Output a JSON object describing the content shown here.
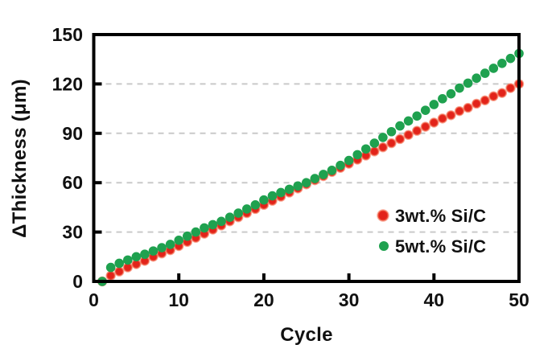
{
  "figure": {
    "background": "#ffffff",
    "frame_color": "#000000",
    "grid_color": "#c9c9c9",
    "tick_color": "#000000",
    "text_color": "#111111"
  },
  "chart_data": {
    "type": "scatter",
    "title": "",
    "xlabel": "Cycle",
    "ylabel": "ΔThickness (μm)",
    "xlim": [
      0,
      50
    ],
    "ylim": [
      0,
      150
    ],
    "x_ticks": [
      0,
      10,
      20,
      30,
      40,
      50
    ],
    "y_ticks": [
      0,
      30,
      60,
      90,
      120,
      150
    ],
    "x_tick_marks": [
      10,
      20,
      30,
      40
    ],
    "y_tick_marks": [
      30,
      60,
      90,
      120
    ],
    "grid_values": [
      30,
      60,
      90,
      120
    ],
    "grid": "horizontal-dashed",
    "legend_position": "inside-right",
    "x": [
      1,
      2,
      3,
      4,
      5,
      6,
      7,
      8,
      9,
      10,
      11,
      12,
      13,
      14,
      15,
      16,
      17,
      18,
      19,
      20,
      21,
      22,
      23,
      24,
      25,
      26,
      27,
      28,
      29,
      30,
      31,
      32,
      33,
      34,
      35,
      36,
      37,
      38,
      39,
      40,
      41,
      42,
      43,
      44,
      45,
      46,
      47,
      48,
      49,
      50
    ],
    "series": [
      {
        "name": "3wt.% Si/C",
        "color": "#e2231a",
        "halo": "#f4694b",
        "values": [
          0,
          3.5,
          6,
          8.5,
          10.5,
          12.5,
          15,
          17,
          19,
          21.5,
          24,
          26.5,
          29,
          31.5,
          34,
          36.5,
          39,
          41.5,
          44,
          46.5,
          49,
          51.5,
          54,
          56.5,
          59,
          61.5,
          64,
          66.5,
          69,
          71.5,
          74,
          76.5,
          79,
          81.5,
          84,
          86.5,
          89,
          91.5,
          94,
          96.5,
          99,
          101,
          103.5,
          105.5,
          108,
          110,
          112.5,
          114.5,
          117.5,
          120
        ]
      },
      {
        "name": "5wt.% Si/C",
        "color": "#1fa14f",
        "halo": "#1fa14f",
        "values": [
          0,
          8.5,
          11,
          13,
          15,
          16.5,
          18.5,
          20.5,
          22.5,
          25,
          27.5,
          30,
          32.5,
          34.5,
          36.5,
          39,
          41.5,
          44,
          46.5,
          49.5,
          52,
          54,
          56,
          58,
          60,
          62.5,
          65,
          67.5,
          70.5,
          73.5,
          77,
          80.5,
          84,
          87.5,
          91,
          94.5,
          97.5,
          100.5,
          104,
          107.5,
          111,
          114,
          117.5,
          120.5,
          123.5,
          126.5,
          129.5,
          132.5,
          135.5,
          138.5
        ]
      }
    ]
  }
}
